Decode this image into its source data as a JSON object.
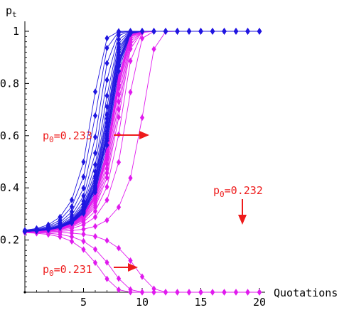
{
  "chart_data": {
    "type": "line",
    "ylabel": "p",
    "ylabel_sub": "t",
    "xlabel": "Quotations",
    "xlim": [
      0,
      20
    ],
    "ylim": [
      0,
      1
    ],
    "xticks": [
      5,
      10,
      15,
      20
    ],
    "yticks": [
      0.2,
      0.4,
      0.6,
      0.8,
      1
    ],
    "ytick_labels": [
      "0.2",
      "0.4",
      "0.6",
      "0.8",
      "1"
    ],
    "grid": false,
    "legend": "none",
    "colors": {
      "upper": "#1f16e0",
      "lower": "#e01aee",
      "annotation": "#ee1b1b"
    },
    "model": {
      "description_source": "curves p_{t+1} = p_t^2 / (p_t^2 + r (1 - p_t)^2)",
      "r": 0.3,
      "x_start": 0,
      "x_end": 20,
      "upper_p0": [
        0.2329,
        0.23295,
        0.233,
        0.23305,
        0.2331,
        0.2332,
        0.2333,
        0.2334,
        0.2335,
        0.2337,
        0.234,
        0.2345,
        0.2352,
        0.2362,
        0.2375
      ],
      "lower_p0": [
        0.2327,
        0.23265,
        0.2326,
        0.23255,
        0.2325,
        0.2324,
        0.2323,
        0.2322,
        0.2321,
        0.2319,
        0.2316,
        0.2311,
        0.2305,
        0.2296,
        0.2284
      ],
      "flat_p0": 0.2328
    },
    "annotations": [
      {
        "id": "a233",
        "base": "p",
        "sub": "0",
        "value": "=0.233",
        "arrow": "right"
      },
      {
        "id": "a232",
        "base": "p",
        "sub": "0",
        "value": "=0.232",
        "arrow": "down"
      },
      {
        "id": "a231",
        "base": "p",
        "sub": "0",
        "value": "=0.231",
        "arrow": "right"
      }
    ]
  }
}
